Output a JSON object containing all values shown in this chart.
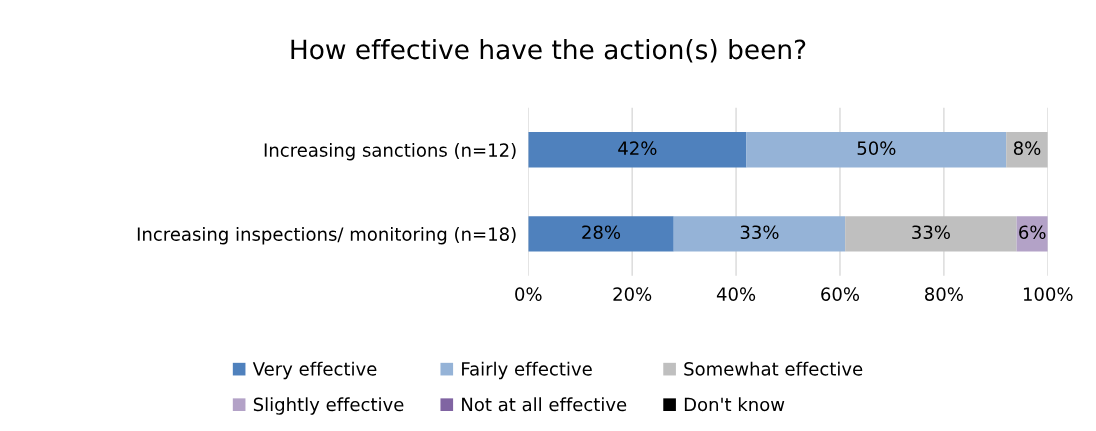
{
  "chart_data": {
    "type": "bar",
    "orientation": "horizontal",
    "stacked": true,
    "title": "How effective have the action(s) been?",
    "categories": [
      "Increasing sanctions (n=12)",
      "Increasing inspections/ monitoring (n=18)"
    ],
    "series": [
      {
        "name": "Very effective",
        "color": "#4f81bd",
        "values": [
          42,
          28
        ],
        "value_labels": [
          "42%",
          "28%"
        ]
      },
      {
        "name": "Fairly effective",
        "color": "#95b3d7",
        "values": [
          50,
          33
        ],
        "value_labels": [
          "50%",
          "33%"
        ]
      },
      {
        "name": "Somewhat effective",
        "color": "#bfbfbf",
        "values": [
          8,
          33
        ],
        "value_labels": [
          "8%",
          "33%"
        ]
      },
      {
        "name": "Slightly effective",
        "color": "#b3a2c7",
        "values": [
          0,
          6
        ],
        "value_labels": [
          null,
          "6%"
        ]
      },
      {
        "name": "Not at all effective",
        "color": "#8064a2",
        "values": [
          0,
          0
        ],
        "value_labels": [
          null,
          null
        ]
      },
      {
        "name": "Don't know",
        "color": "#000000",
        "values": [
          0,
          0
        ],
        "value_labels": [
          null,
          null
        ]
      }
    ],
    "xlim": [
      0,
      100
    ],
    "xticks": [
      {
        "value": 0,
        "label": "0%"
      },
      {
        "value": 20,
        "label": "20%"
      },
      {
        "value": 40,
        "label": "40%"
      },
      {
        "value": 60,
        "label": "60%"
      },
      {
        "value": 80,
        "label": "80%"
      },
      {
        "value": 100,
        "label": "100%"
      }
    ],
    "grid": "x",
    "legend": "bottom"
  }
}
